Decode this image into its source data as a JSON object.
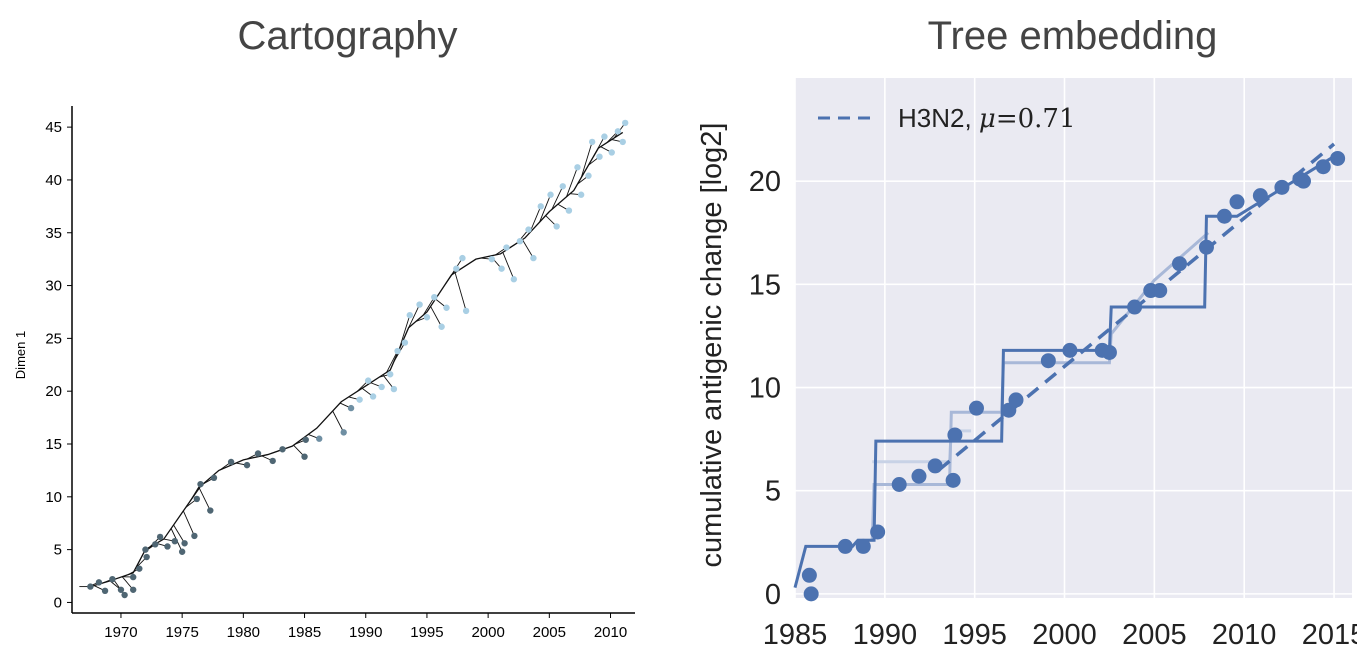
{
  "chart_data": [
    {
      "type": "line",
      "title": "Cartography",
      "xlabel": "",
      "ylabel": "Dimen 1",
      "xlim": [
        1966,
        2012
      ],
      "ylim": [
        -1,
        47
      ],
      "x_ticks": [
        1970,
        1975,
        1980,
        1985,
        1990,
        1995,
        2000,
        2005,
        2010
      ],
      "y_ticks": [
        0,
        5,
        10,
        15,
        20,
        25,
        30,
        35,
        40,
        45
      ],
      "grid": false,
      "series": [
        {
          "x": [
            1967.5,
            1969,
            1971,
            1972,
            1973.5,
            1975,
            1976.5,
            1978,
            1980,
            1982,
            1984,
            1986,
            1988,
            1990,
            1992,
            1993.5,
            1995,
            1997,
            1999,
            2001,
            2003,
            2005,
            2007,
            2009,
            2011
          ],
          "y": [
            1.5,
            2,
            2.8,
            5,
            6,
            8.5,
            11,
            12.5,
            13.5,
            14,
            14.8,
            16.5,
            19,
            20.5,
            22,
            26,
            27.5,
            31,
            32.5,
            33,
            34.5,
            37,
            39,
            43,
            44.5
          ]
        }
      ],
      "points": [
        {
          "x": 1967.5,
          "y": 1.5
        },
        {
          "x": 1968.2,
          "y": 1.9
        },
        {
          "x": 1968.7,
          "y": 1.1
        },
        {
          "x": 1969.3,
          "y": 2.2
        },
        {
          "x": 1970,
          "y": 1.2
        },
        {
          "x": 1970.3,
          "y": 0.7
        },
        {
          "x": 1971,
          "y": 2.4
        },
        {
          "x": 1971,
          "y": 1.2
        },
        {
          "x": 1971.5,
          "y": 3.2
        },
        {
          "x": 1972,
          "y": 5.0
        },
        {
          "x": 1972.1,
          "y": 4.3
        },
        {
          "x": 1972.8,
          "y": 5.5
        },
        {
          "x": 1973.2,
          "y": 6.2
        },
        {
          "x": 1973.8,
          "y": 5.3
        },
        {
          "x": 1974.4,
          "y": 5.8
        },
        {
          "x": 1975,
          "y": 4.8
        },
        {
          "x": 1975.2,
          "y": 5.6
        },
        {
          "x": 1976,
          "y": 6.3
        },
        {
          "x": 1976.2,
          "y": 9.8
        },
        {
          "x": 1976.5,
          "y": 11.2
        },
        {
          "x": 1977.3,
          "y": 8.7
        },
        {
          "x": 1977.6,
          "y": 11.8
        },
        {
          "x": 1979,
          "y": 13.3
        },
        {
          "x": 1980.3,
          "y": 13.0
        },
        {
          "x": 1981.2,
          "y": 14.1
        },
        {
          "x": 1982.4,
          "y": 13.4
        },
        {
          "x": 1983.2,
          "y": 14.5
        },
        {
          "x": 1985,
          "y": 13.8
        },
        {
          "x": 1985.1,
          "y": 15.4
        },
        {
          "x": 1986.2,
          "y": 15.5
        },
        {
          "x": 1988.2,
          "y": 16.1
        },
        {
          "x": 1988.8,
          "y": 18.4
        },
        {
          "x": 1989.5,
          "y": 19.2
        },
        {
          "x": 1990.2,
          "y": 21.0
        },
        {
          "x": 1990.6,
          "y": 19.5
        },
        {
          "x": 1991.3,
          "y": 20.4
        },
        {
          "x": 1992,
          "y": 21.6
        },
        {
          "x": 1992.3,
          "y": 20.2
        },
        {
          "x": 1992.6,
          "y": 23.8
        },
        {
          "x": 1993.2,
          "y": 24.6
        },
        {
          "x": 1993.6,
          "y": 27.2
        },
        {
          "x": 1994.4,
          "y": 28.2
        },
        {
          "x": 1995,
          "y": 27.0
        },
        {
          "x": 1995.6,
          "y": 28.9
        },
        {
          "x": 1996.2,
          "y": 26.1
        },
        {
          "x": 1996.6,
          "y": 27.9
        },
        {
          "x": 1997.4,
          "y": 31.6
        },
        {
          "x": 1997.9,
          "y": 32.6
        },
        {
          "x": 1998.2,
          "y": 27.6
        },
        {
          "x": 2000.3,
          "y": 32.5
        },
        {
          "x": 2001.1,
          "y": 31.6
        },
        {
          "x": 2001.5,
          "y": 33.6
        },
        {
          "x": 2002.1,
          "y": 30.6
        },
        {
          "x": 2002.6,
          "y": 34.2
        },
        {
          "x": 2003.3,
          "y": 35.3
        },
        {
          "x": 2003.7,
          "y": 32.6
        },
        {
          "x": 2004.3,
          "y": 37.5
        },
        {
          "x": 2005.1,
          "y": 38.6
        },
        {
          "x": 2005.6,
          "y": 35.6
        },
        {
          "x": 2006.1,
          "y": 39.4
        },
        {
          "x": 2006.6,
          "y": 37.1
        },
        {
          "x": 2007.3,
          "y": 41.2
        },
        {
          "x": 2007.6,
          "y": 38.6
        },
        {
          "x": 2008.2,
          "y": 40.4
        },
        {
          "x": 2008.5,
          "y": 43.6
        },
        {
          "x": 2009.1,
          "y": 42.2
        },
        {
          "x": 2009.5,
          "y": 44.1
        },
        {
          "x": 2010.1,
          "y": 42.6
        },
        {
          "x": 2010.6,
          "y": 44.6
        },
        {
          "x": 2011,
          "y": 43.6
        },
        {
          "x": 2011.2,
          "y": 45.4
        }
      ]
    },
    {
      "type": "line",
      "title": "Tree embedding",
      "xlabel": "",
      "ylabel": "cumulative antigenic change [log2]",
      "xlim": [
        1985,
        2016
      ],
      "ylim": [
        -0.2,
        25
      ],
      "x_ticks": [
        1985,
        1990,
        1995,
        2000,
        2005,
        2010,
        2015
      ],
      "y_ticks": [
        0,
        5,
        10,
        15,
        20
      ],
      "grid": true,
      "legend": {
        "position": "top-left",
        "label": "H3N2, ",
        "mu_symbol": "μ",
        "mu_value": "=0.71"
      },
      "colors": {
        "main": "#4c72b0",
        "light": "#a8b8d8",
        "lighter": "#c8d2e6",
        "background": "#eaeaf2"
      },
      "series": [
        {
          "style": "dashed",
          "x": [
            1993,
            2015
          ],
          "y": [
            6.0,
            21.8
          ]
        },
        {
          "style": "step",
          "x": [
            1985,
            1985.6,
            1988.2,
            1988.5,
            1989.4,
            1989.5,
            1996.5,
            1996.6,
            2002.5,
            2002.6,
            2007.8,
            2007.9,
            2009.6,
            2015
          ],
          "y": [
            0.3,
            2.3,
            2.3,
            2.6,
            2.6,
            7.4,
            7.4,
            11.8,
            11.8,
            13.9,
            13.9,
            18.3,
            18.3,
            21.2
          ]
        },
        {
          "style": "step-light",
          "x": [
            1988.5,
            1989.3,
            1989.4,
            1993.6,
            1993.7,
            1996.5,
            1996.6,
            2002.5,
            2002.6,
            2005,
            2008
          ],
          "y": [
            2.6,
            2.6,
            5.3,
            5.3,
            8.8,
            8.8,
            11.2,
            11.2,
            12.6,
            15.2,
            17.5
          ]
        },
        {
          "style": "step-lighter",
          "x": [
            1989.3,
            1993.6,
            1993.7,
            1994.8
          ],
          "y": [
            6.4,
            6.4,
            7.9,
            7.9
          ]
        }
      ],
      "points": [
        {
          "x": 1985.8,
          "y": 0.9
        },
        {
          "x": 1985.9,
          "y": 0.0
        },
        {
          "x": 1987.8,
          "y": 2.3
        },
        {
          "x": 1988.8,
          "y": 2.3
        },
        {
          "x": 1989.6,
          "y": 3.0
        },
        {
          "x": 1990.8,
          "y": 5.3
        },
        {
          "x": 1991.9,
          "y": 5.7
        },
        {
          "x": 1992.8,
          "y": 6.2
        },
        {
          "x": 1993.8,
          "y": 5.5
        },
        {
          "x": 1993.9,
          "y": 7.7
        },
        {
          "x": 1995.1,
          "y": 9.0
        },
        {
          "x": 1996.9,
          "y": 8.9
        },
        {
          "x": 1997.3,
          "y": 9.4
        },
        {
          "x": 1999.1,
          "y": 11.3
        },
        {
          "x": 2000.3,
          "y": 11.8
        },
        {
          "x": 2002.1,
          "y": 11.8
        },
        {
          "x": 2002.5,
          "y": 11.7
        },
        {
          "x": 2003.9,
          "y": 13.9
        },
        {
          "x": 2004.8,
          "y": 14.7
        },
        {
          "x": 2005.3,
          "y": 14.7
        },
        {
          "x": 2006.4,
          "y": 16.0
        },
        {
          "x": 2007.9,
          "y": 16.8
        },
        {
          "x": 2008.9,
          "y": 18.3
        },
        {
          "x": 2009.6,
          "y": 19.0
        },
        {
          "x": 2010.9,
          "y": 19.3
        },
        {
          "x": 2012.1,
          "y": 19.7
        },
        {
          "x": 2013.1,
          "y": 20.1
        },
        {
          "x": 2013.3,
          "y": 20.0
        },
        {
          "x": 2014.4,
          "y": 20.7
        },
        {
          "x": 2015.2,
          "y": 21.1
        }
      ]
    }
  ]
}
